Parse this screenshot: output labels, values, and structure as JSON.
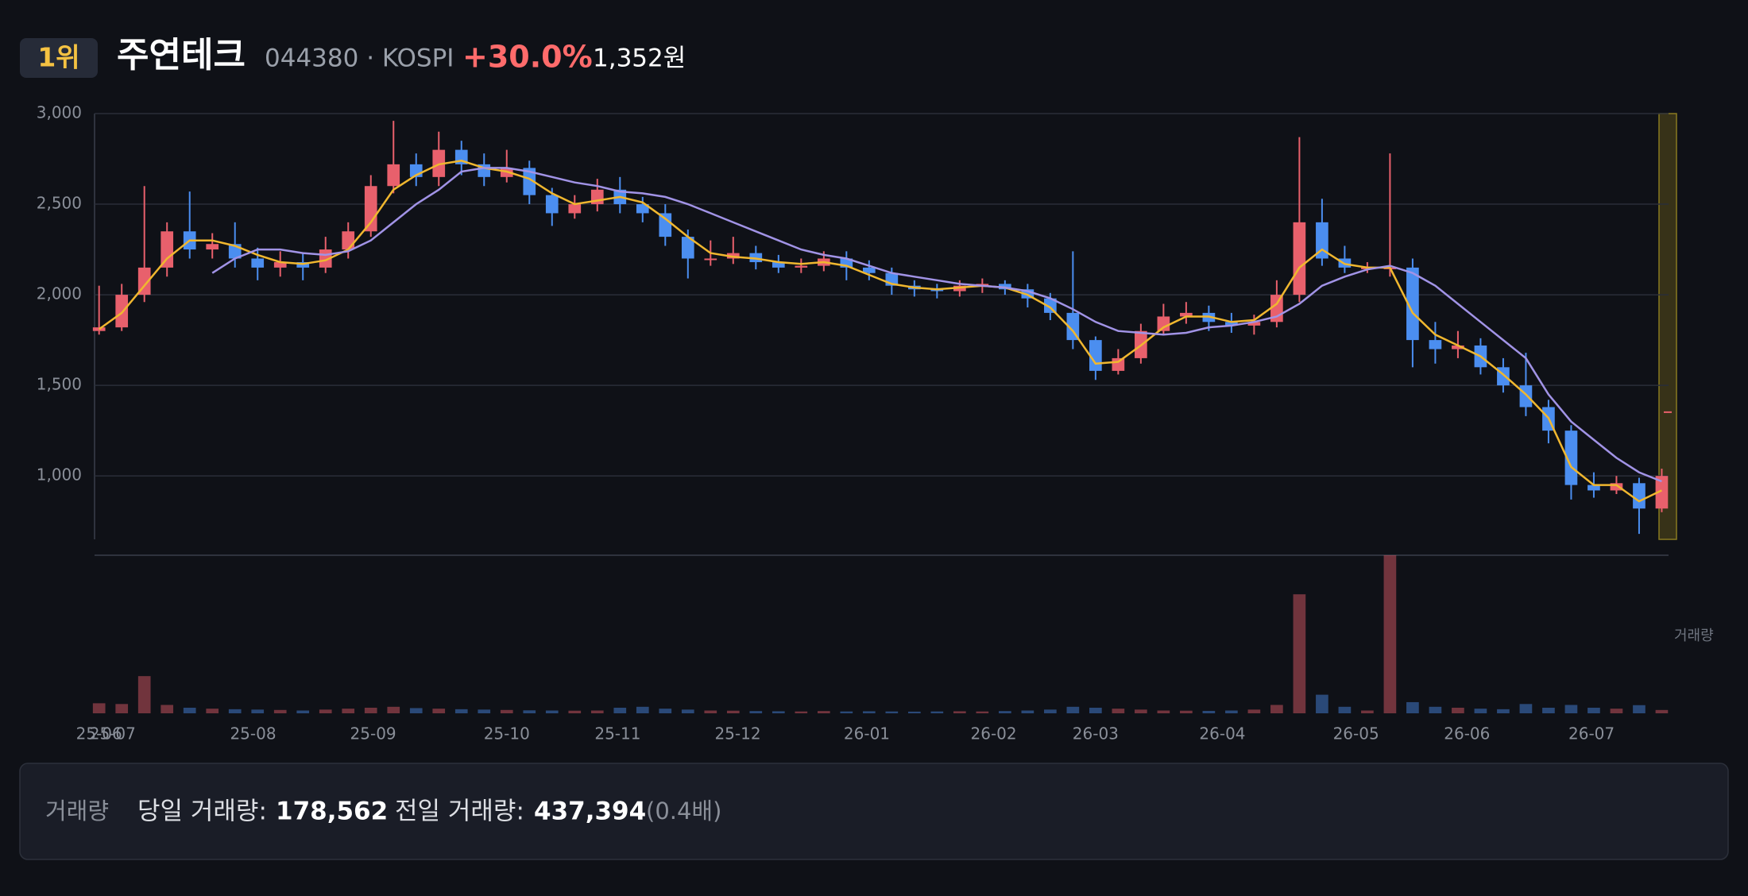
{
  "header": {
    "rank": "1위",
    "name": "주연테크",
    "code": "044380 · KOSPI",
    "change": "+30.0%",
    "price": "1,352원"
  },
  "chart_data": {
    "type": "candlestick",
    "up_color": "#e8606c",
    "down_color": "#4b8ef0",
    "ylim": [
      650,
      3000
    ],
    "yticks": [
      {
        "value": 3000,
        "label": "3,000"
      },
      {
        "value": 2500,
        "label": "2,500"
      },
      {
        "value": 2000,
        "label": "2,000"
      },
      {
        "value": 1500,
        "label": "1,500"
      },
      {
        "value": 1000,
        "label": "1,000"
      }
    ],
    "grid": true,
    "xlim": [
      -0.2,
      69.3
    ],
    "xticks": [
      {
        "value": 0,
        "label": "25-06"
      },
      {
        "value": 0.6,
        "label": "25-07"
      },
      {
        "value": 6.8,
        "label": "25-08"
      },
      {
        "value": 12.1,
        "label": "25-09"
      },
      {
        "value": 18.0,
        "label": "25-10"
      },
      {
        "value": 22.9,
        "label": "25-11"
      },
      {
        "value": 28.2,
        "label": "25-12"
      },
      {
        "value": 33.9,
        "label": "26-01"
      },
      {
        "value": 39.5,
        "label": "26-02"
      },
      {
        "value": 44.0,
        "label": "26-03"
      },
      {
        "value": 49.6,
        "label": "26-04"
      },
      {
        "value": 55.5,
        "label": "26-05"
      },
      {
        "value": 60.4,
        "label": "26-06"
      },
      {
        "value": 65.9,
        "label": "26-07"
      }
    ],
    "open": [
      1800,
      1820,
      2000,
      2150,
      2350,
      2250,
      2280,
      2200,
      2150,
      2180,
      2150,
      2250,
      2350,
      2600,
      2720,
      2650,
      2800,
      2720,
      2650,
      2700,
      2550,
      2450,
      2500,
      2580,
      2500,
      2450,
      2320,
      2200,
      2200,
      2230,
      2180,
      2150,
      2160,
      2200,
      2150,
      2120,
      2050,
      2030,
      2020,
      2050,
      2060,
      2030,
      1980,
      1900,
      1750,
      1580,
      1650,
      1800,
      1880,
      1900,
      1850,
      1830,
      1850,
      2000,
      2400,
      2200,
      2150,
      2150,
      2150,
      1750,
      1700,
      1720,
      1600,
      1500,
      1380,
      1250,
      950,
      920,
      960,
      820
    ],
    "high": [
      2050,
      2060,
      2600,
      2400,
      2570,
      2340,
      2400,
      2260,
      2240,
      2230,
      2320,
      2400,
      2660,
      2960,
      2780,
      2900,
      2850,
      2780,
      2800,
      2740,
      2590,
      2550,
      2640,
      2650,
      2540,
      2500,
      2360,
      2300,
      2320,
      2270,
      2220,
      2200,
      2240,
      2240,
      2190,
      2150,
      2080,
      2060,
      2080,
      2090,
      2080,
      2060,
      2010,
      2240,
      1770,
      1700,
      1840,
      1950,
      1960,
      1940,
      1900,
      1890,
      2080,
      2870,
      2530,
      2270,
      2180,
      2780,
      2200,
      1850,
      1800,
      1760,
      1650,
      1680,
      1420,
      1280,
      1020,
      1000,
      990,
      1040
    ],
    "low": [
      1780,
      1800,
      1960,
      2100,
      2200,
      2200,
      2150,
      2080,
      2100,
      2080,
      2120,
      2200,
      2320,
      2560,
      2600,
      2600,
      2660,
      2600,
      2620,
      2500,
      2380,
      2420,
      2460,
      2450,
      2400,
      2270,
      2090,
      2160,
      2170,
      2140,
      2120,
      2120,
      2130,
      2080,
      2080,
      2000,
      1990,
      1980,
      1990,
      2010,
      2000,
      1930,
      1860,
      1700,
      1530,
      1560,
      1620,
      1780,
      1840,
      1800,
      1790,
      1780,
      1820,
      1960,
      2160,
      2120,
      2120,
      2100,
      1600,
      1620,
      1650,
      1560,
      1460,
      1330,
      1180,
      870,
      880,
      900,
      680,
      800
    ],
    "close": [
      1820,
      2000,
      2150,
      2350,
      2250,
      2280,
      2200,
      2150,
      2180,
      2150,
      2250,
      2350,
      2600,
      2720,
      2650,
      2800,
      2720,
      2650,
      2700,
      2550,
      2450,
      2500,
      2580,
      2500,
      2450,
      2320,
      2200,
      2200,
      2230,
      2180,
      2150,
      2160,
      2200,
      2150,
      2120,
      2050,
      2030,
      2020,
      2050,
      2060,
      2030,
      1980,
      1900,
      1750,
      1580,
      1650,
      1800,
      1880,
      1900,
      1850,
      1830,
      1850,
      2000,
      2400,
      2200,
      2150,
      2150,
      2150,
      1750,
      1700,
      1720,
      1600,
      1500,
      1380,
      1250,
      950,
      920,
      960,
      820,
      1000
    ],
    "volume": [
      540000,
      500000,
      2000000,
      450000,
      300000,
      250000,
      220000,
      200000,
      180000,
      150000,
      200000,
      250000,
      300000,
      350000,
      280000,
      250000,
      220000,
      200000,
      180000,
      160000,
      150000,
      140000,
      150000,
      300000,
      350000,
      250000,
      200000,
      150000,
      140000,
      120000,
      110000,
      100000,
      120000,
      100000,
      110000,
      100000,
      90000,
      100000,
      110000,
      100000,
      120000,
      150000,
      200000,
      350000,
      300000,
      250000,
      200000,
      150000,
      140000,
      130000,
      150000,
      200000,
      450000,
      6400000,
      1000000,
      350000,
      150000,
      8500000,
      600000,
      350000,
      300000,
      250000,
      220000,
      500000,
      300000,
      450000,
      300000,
      250000,
      437394,
      178562
    ],
    "volume_lim": [
      0,
      8500000
    ],
    "ma_lines": [
      {
        "color": "#f0b72f",
        "values": [
          1810,
          1900,
          2050,
          2200,
          2300,
          2300,
          2270,
          2220,
          2180,
          2170,
          2190,
          2250,
          2400,
          2580,
          2660,
          2720,
          2740,
          2700,
          2680,
          2640,
          2560,
          2500,
          2520,
          2540,
          2510,
          2420,
          2320,
          2230,
          2210,
          2200,
          2180,
          2170,
          2180,
          2160,
          2110,
          2060,
          2040,
          2030,
          2040,
          2050,
          2040,
          2000,
          1930,
          1800,
          1620,
          1630,
          1720,
          1820,
          1880,
          1880,
          1850,
          1860,
          1950,
          2150,
          2250,
          2170,
          2150,
          2150,
          1900,
          1780,
          1720,
          1660,
          1560,
          1450,
          1320,
          1050,
          950,
          950,
          860,
          920
        ]
      },
      {
        "color": "#a193e6",
        "values": [
          null,
          null,
          null,
          null,
          null,
          2120,
          2200,
          2250,
          2250,
          2230,
          2220,
          2240,
          2300,
          2400,
          2500,
          2580,
          2680,
          2700,
          2700,
          2680,
          2650,
          2620,
          2600,
          2570,
          2560,
          2540,
          2500,
          2450,
          2400,
          2350,
          2300,
          2250,
          2220,
          2200,
          2160,
          2120,
          2100,
          2080,
          2060,
          2050,
          2040,
          2020,
          1980,
          1920,
          1850,
          1800,
          1790,
          1780,
          1790,
          1820,
          1830,
          1850,
          1880,
          1950,
          2050,
          2100,
          2140,
          2160,
          2120,
          2050,
          1950,
          1850,
          1750,
          1650,
          1450,
          1300,
          1200,
          1100,
          1020,
          970
        ]
      }
    ],
    "current_price": 1352,
    "volume_axis_label": "거래량"
  },
  "volume_panel": {
    "label": "거래량",
    "today_label": "당일 거래량:",
    "today_value": "178,562",
    "prev_label": "전일 거래량:",
    "prev_value": "437,394",
    "ratio": "(0.4배)"
  }
}
